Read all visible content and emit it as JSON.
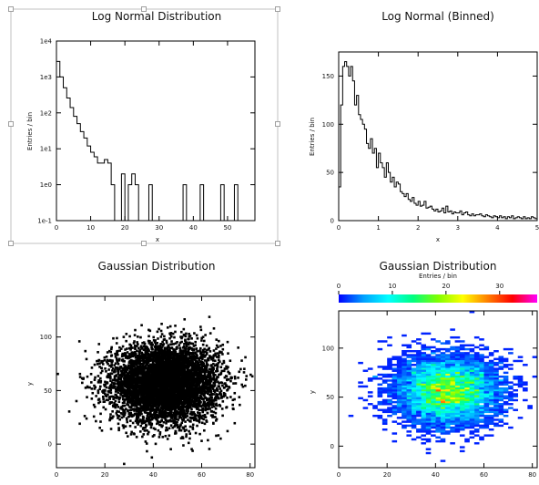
{
  "chart_data": [
    {
      "type": "histogram",
      "title": "Log Normal Distribution",
      "xlabel": "x",
      "ylabel": "Entries / bin",
      "yscale": "log",
      "xlim": [
        0,
        58
      ],
      "ylim": [
        0.1,
        10000
      ],
      "x_ticks": [
        0,
        10,
        20,
        30,
        40,
        50
      ],
      "y_ticks": [
        {
          "value": 0.1,
          "label": "1e-1"
        },
        {
          "value": 1,
          "label": "1e0"
        },
        {
          "value": 10,
          "label": "1e1"
        },
        {
          "value": 100,
          "label": "1e2"
        },
        {
          "value": 1000,
          "label": "1e3"
        },
        {
          "value": 10000,
          "label": "1e4"
        }
      ],
      "bin_width": 1,
      "bin_start": 0,
      "values": [
        2700,
        1000,
        500,
        260,
        140,
        80,
        50,
        30,
        20,
        12,
        8,
        6,
        4,
        4,
        5,
        4,
        1,
        0,
        0,
        2,
        0,
        1,
        2,
        1,
        0,
        0,
        0,
        1,
        0,
        0,
        0,
        0,
        0,
        0,
        0,
        0,
        0,
        1,
        0,
        0,
        0,
        0,
        1,
        0,
        0,
        0,
        0,
        0,
        1,
        0,
        0,
        0,
        1,
        0,
        0,
        0,
        0,
        0
      ],
      "selected": true
    },
    {
      "type": "histogram",
      "title": "Log Normal  (Binned)",
      "xlabel": "x",
      "ylabel": "Entries / bin",
      "xlim": [
        0,
        5
      ],
      "ylim": [
        0,
        175
      ],
      "x_ticks": [
        0,
        1,
        2,
        3,
        4,
        5
      ],
      "y_ticks": [
        0,
        50,
        100,
        150
      ],
      "bin_width": 0.05,
      "bin_start": 0,
      "values": [
        35,
        120,
        160,
        165,
        160,
        150,
        160,
        145,
        120,
        130,
        110,
        105,
        100,
        95,
        80,
        75,
        85,
        70,
        75,
        55,
        70,
        60,
        55,
        45,
        60,
        50,
        40,
        45,
        35,
        40,
        38,
        30,
        28,
        25,
        28,
        22,
        20,
        24,
        18,
        16,
        20,
        15,
        16,
        20,
        13,
        14,
        15,
        12,
        10,
        12,
        9,
        10,
        13,
        8,
        15,
        9,
        10,
        7,
        9,
        8,
        8,
        10,
        6,
        8,
        9,
        6,
        5,
        7,
        5,
        6,
        6,
        7,
        5,
        4,
        6,
        5,
        4,
        3,
        5,
        4,
        3,
        5,
        3,
        4,
        2,
        4,
        3,
        5,
        2,
        3,
        4,
        3,
        2,
        4,
        2,
        3,
        2,
        4,
        3,
        2
      ]
    },
    {
      "type": "scatter",
      "title": "Gaussian Distribution",
      "ylabel": "y",
      "xlim": [
        0,
        82
      ],
      "ylim": [
        -22,
        138
      ],
      "x_ticks": [
        0,
        20,
        40,
        60,
        80
      ],
      "y_ticks": [
        0,
        50,
        100
      ],
      "distribution": {
        "mean_x": 45,
        "mean_y": 57,
        "sigma_x": 11,
        "sigma_y": 18
      },
      "points": 6000,
      "marker_color": "#000000"
    },
    {
      "type": "heatmap",
      "title": "Gaussian Distribution",
      "ylabel": "y",
      "xlim": [
        0,
        82
      ],
      "ylim": [
        -22,
        138
      ],
      "x_ticks": [
        0,
        20,
        40,
        60,
        80
      ],
      "y_ticks": [
        0,
        50,
        100
      ],
      "distribution": {
        "mean_x": 45,
        "mean_y": 57,
        "sigma_x": 11,
        "sigma_y": 18
      },
      "points": 6000,
      "cell_size": 2,
      "colorbar": {
        "label": "Entries / bin",
        "range": [
          0,
          37
        ],
        "ticks": [
          0,
          10,
          20,
          30
        ],
        "stops": [
          "#0000ff",
          "#00a0ff",
          "#00ffff",
          "#00ff80",
          "#80ff00",
          "#ffff00",
          "#ff8000",
          "#ff0000",
          "#ff00ff"
        ]
      }
    }
  ]
}
